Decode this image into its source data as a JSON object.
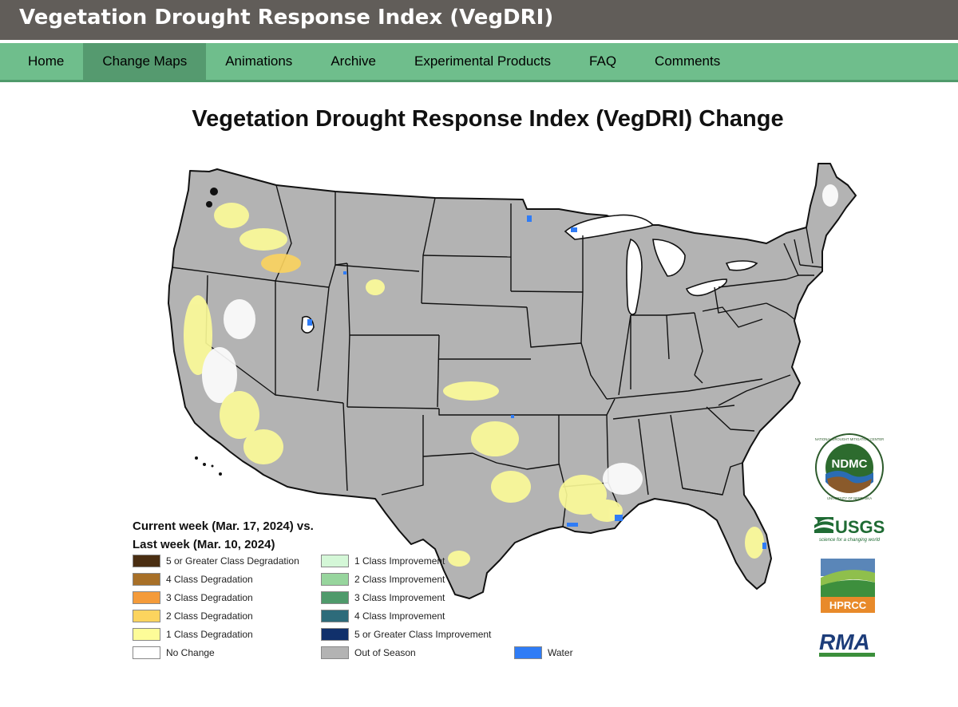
{
  "header": {
    "title": "Vegetation Drought Response Index (VegDRI)"
  },
  "nav": {
    "items": [
      {
        "label": "Home"
      },
      {
        "label": "Change Maps"
      },
      {
        "label": "Animations"
      },
      {
        "label": "Archive"
      },
      {
        "label": "Experimental Products"
      },
      {
        "label": "FAQ"
      },
      {
        "label": "Comments"
      }
    ],
    "active": "Change Maps"
  },
  "map": {
    "title": "Vegetation Drought Response Index (VegDRI) Change",
    "legend": {
      "heading_line1": "Current week (Mar. 17, 2024) vs.",
      "heading_line2": "Last week (Mar. 10, 2024)",
      "items": [
        {
          "label": "5 or Greater Class Degradation",
          "color": "#4a2e12"
        },
        {
          "label": "4 Class Degradation",
          "color": "#a87028"
        },
        {
          "label": "3 Class Degradation",
          "color": "#f49b3a"
        },
        {
          "label": "2 Class Degradation",
          "color": "#fcd45e"
        },
        {
          "label": "1 Class Degradation",
          "color": "#fdfc98"
        },
        {
          "label": "No Change",
          "color": "#ffffff"
        },
        {
          "label": "1 Class Improvement",
          "color": "#d4f7d7"
        },
        {
          "label": "2 Class Improvement",
          "color": "#97d59d"
        },
        {
          "label": "3 Class Improvement",
          "color": "#4f9a6b"
        },
        {
          "label": "4 Class Improvement",
          "color": "#2d6b7a"
        },
        {
          "label": "5 or Greater Class Improvement",
          "color": "#10306b"
        },
        {
          "label": "Out of Season",
          "color": "#b3b3b3"
        },
        {
          "label": "Water",
          "color": "#2f7cf6"
        }
      ]
    }
  },
  "logos": {
    "ndmc": {
      "text": "NDMC",
      "ring_top": "NATIONAL DROUGHT MITIGATION CENTER",
      "ring_bottom": "UNIVERSITY OF NEBRASKA"
    },
    "usgs": {
      "text": "USGS",
      "tagline": "science for a changing world"
    },
    "hprcc": {
      "text": "HPRCC"
    },
    "rma": {
      "text": "RMA"
    }
  },
  "colors": {
    "header_bg": "#615d59",
    "nav_bg": "#6fbe8c",
    "nav_active_bg": "#559a6f",
    "land": "#b3b3b3",
    "water": "#2f7cf6"
  }
}
